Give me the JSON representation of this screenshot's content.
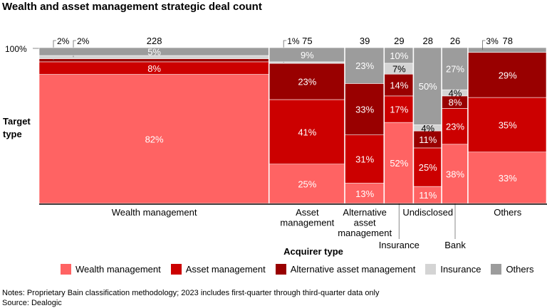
{
  "title": "Wealth and asset management strategic deal count",
  "chart_data": {
    "type": "marimekko",
    "title": "Wealth and asset management strategic deal count",
    "ylabel": "Target type",
    "xlabel": "Acquirer type",
    "y_tick_label": "100%",
    "segments": [
      "Wealth management",
      "Asset management",
      "Alternative asset management",
      "Insurance",
      "Others"
    ],
    "colors": [
      "#ff6363",
      "#cc0000",
      "#990000",
      "#d4d4d4",
      "#9c9c9c"
    ],
    "columns": [
      {
        "name": "Wealth management",
        "count": 228,
        "count_label": "228",
        "values": [
          82,
          8,
          2,
          2,
          5
        ]
      },
      {
        "name": "Asset management",
        "count": 75,
        "count_label": "75",
        "values": [
          25,
          41,
          23,
          1,
          9
        ]
      },
      {
        "name": "Alternative asset management",
        "count": 39,
        "count_label": "39",
        "values": [
          13,
          31,
          33,
          0,
          23
        ]
      },
      {
        "name": "Insurance",
        "count": 29,
        "count_label": "29",
        "values": [
          52,
          17,
          14,
          7,
          10
        ]
      },
      {
        "name": "Undisclosed",
        "count": 28,
        "count_label": "28",
        "values": [
          11,
          25,
          11,
          4,
          50
        ]
      },
      {
        "name": "Bank",
        "count": 26,
        "count_label": "26",
        "values": [
          38,
          23,
          8,
          4,
          27
        ]
      },
      {
        "name": "Others",
        "count": 78,
        "count_label": "78",
        "values": [
          33,
          35,
          29,
          0,
          3
        ]
      }
    ],
    "x_labels": [
      [
        "Wealth management"
      ],
      [
        "Asset",
        "management"
      ],
      [
        "Alternative",
        "asset",
        "management"
      ],
      [
        "Insurance"
      ],
      [
        "Undisclosed"
      ],
      [
        "Bank"
      ],
      [
        "Others"
      ]
    ],
    "legend_position": "bottom"
  },
  "legend": [
    "Wealth management",
    "Asset management",
    "Alternative asset management",
    "Insurance",
    "Others"
  ],
  "notes": "Notes: Proprietary Bain classification methodology; 2023 includes first-quarter through third-quarter data only",
  "source": "Source: Dealogic"
}
